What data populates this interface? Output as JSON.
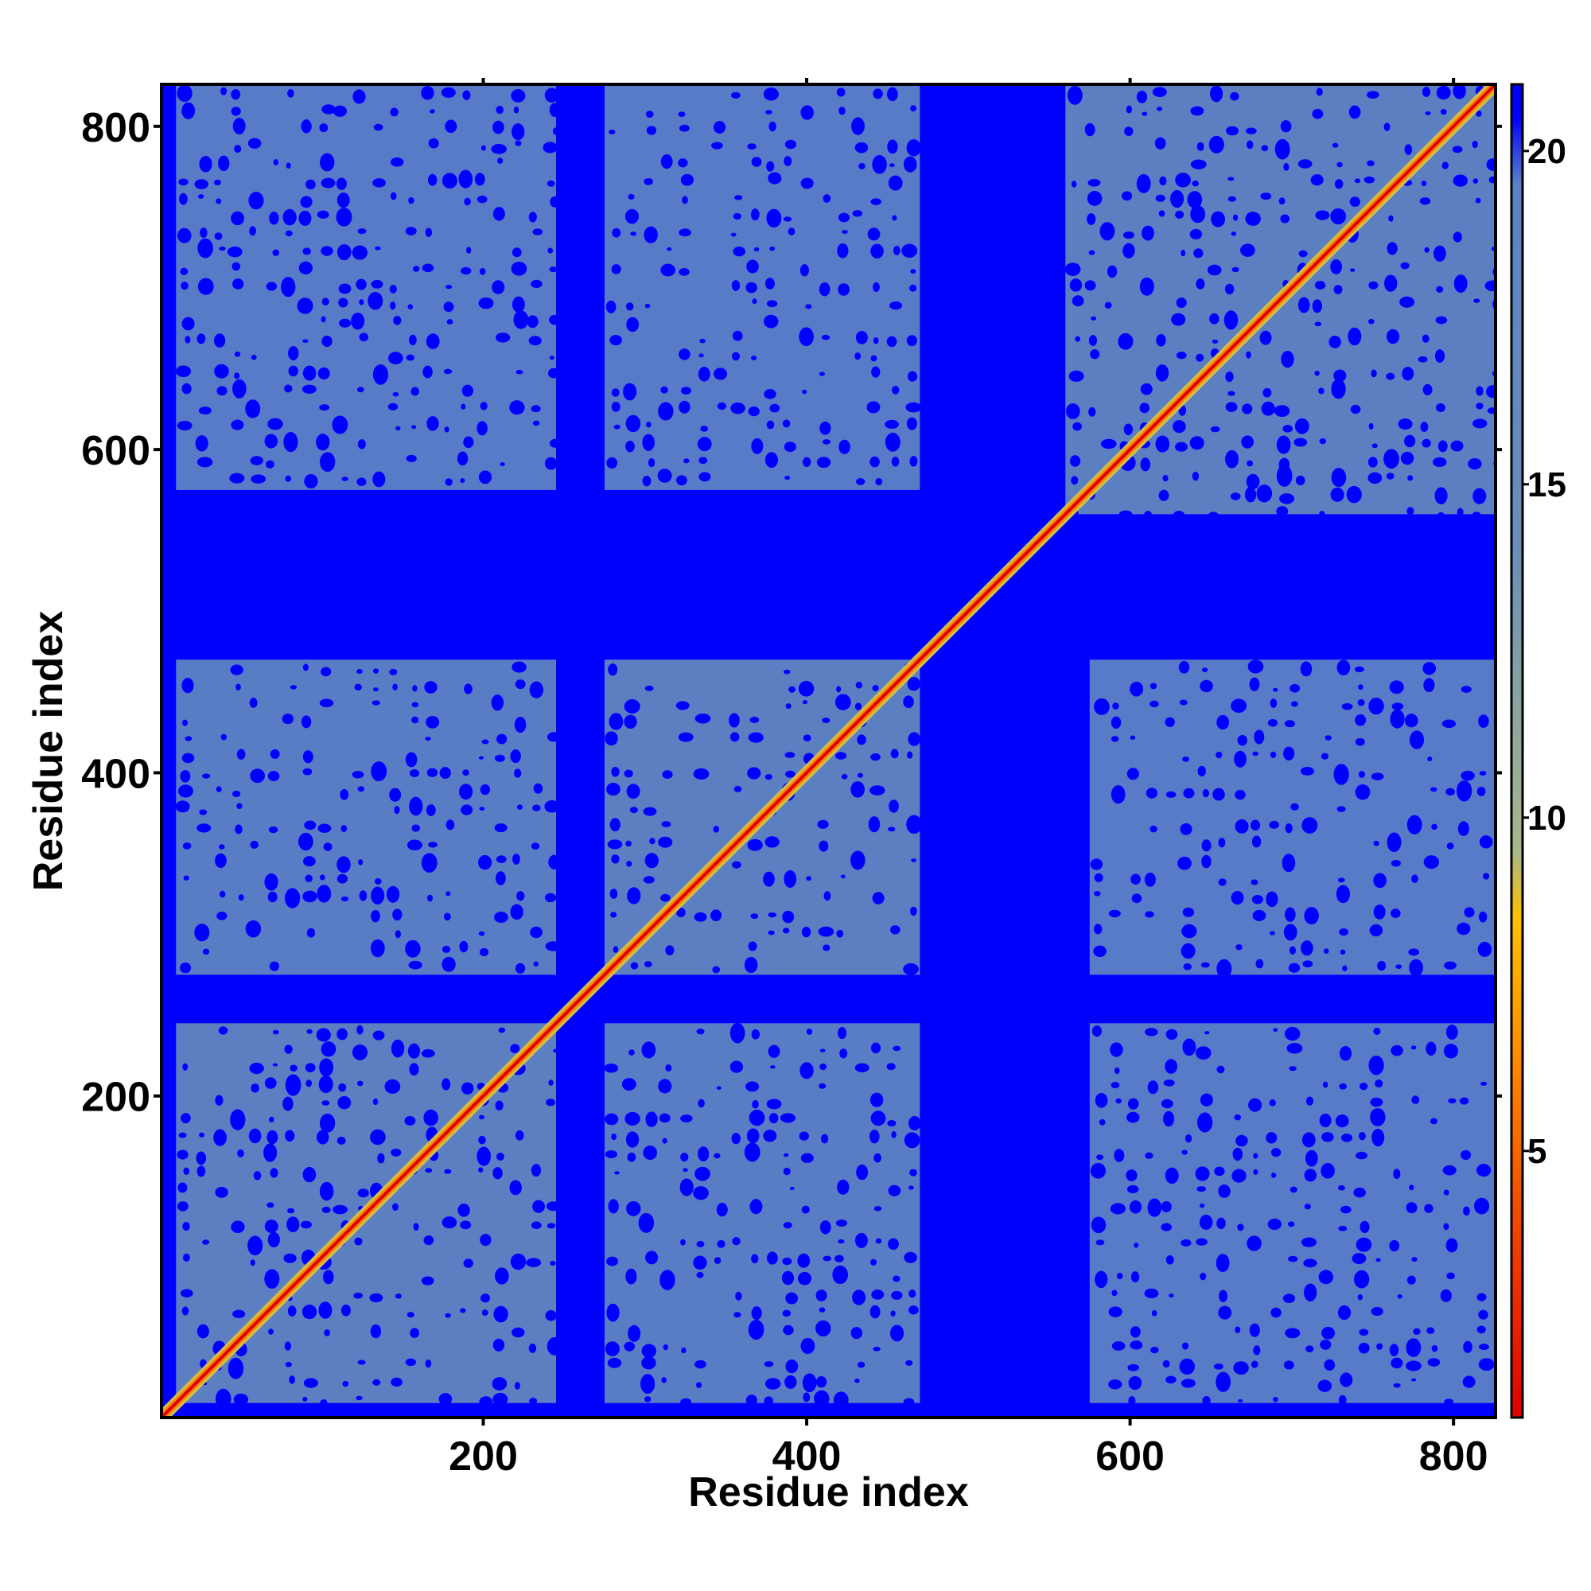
{
  "chart_data": {
    "type": "heatmap",
    "title": "",
    "xlabel": "Residue index",
    "ylabel": "Residue index",
    "xlim": [
      1,
      826
    ],
    "ylim": [
      1,
      826
    ],
    "x_ticks": [
      200,
      400,
      600,
      800
    ],
    "y_ticks": [
      200,
      400,
      600,
      800
    ],
    "colorbar": {
      "range": [
        1,
        21
      ],
      "ticks": [
        5,
        10,
        15,
        20
      ],
      "stops": [
        {
          "value": 1,
          "color": "#e00000"
        },
        {
          "value": 4,
          "color": "#f04a00"
        },
        {
          "value": 6.5,
          "color": "#ff8c00"
        },
        {
          "value": 8.5,
          "color": "#ffc000"
        },
        {
          "value": 9.5,
          "color": "#a8b88a"
        },
        {
          "value": 14,
          "color": "#6a8fb8"
        },
        {
          "value": 19.5,
          "color": "#5a82c6"
        },
        {
          "value": 20.5,
          "color": "#0000ff"
        },
        {
          "value": 21,
          "color": "#0000ff"
        }
      ]
    },
    "background_value": 21,
    "diagonal_value": 1,
    "domains": [
      {
        "start": 10,
        "end": 245
      },
      {
        "start": 275,
        "end": 470
      },
      {
        "start": 560,
        "end": 826
      }
    ],
    "contact_blocks": [
      {
        "x": [
          10,
          245
        ],
        "y": [
          10,
          245
        ],
        "value": 16
      },
      {
        "x": [
          275,
          470
        ],
        "y": [
          275,
          470
        ],
        "value": 16
      },
      {
        "x": [
          560,
          826
        ],
        "y": [
          560,
          826
        ],
        "value": 16
      },
      {
        "x": [
          275,
          470
        ],
        "y": [
          10,
          245
        ],
        "value": 17
      },
      {
        "x": [
          10,
          245
        ],
        "y": [
          275,
          470
        ],
        "value": 17
      },
      {
        "x": [
          575,
          826
        ],
        "y": [
          10,
          245
        ],
        "value": 18
      },
      {
        "x": [
          10,
          245
        ],
        "y": [
          575,
          826
        ],
        "value": 18
      },
      {
        "x": [
          575,
          826
        ],
        "y": [
          275,
          470
        ],
        "value": 18
      },
      {
        "x": [
          275,
          470
        ],
        "y": [
          575,
          826
        ],
        "value": 18
      }
    ]
  }
}
